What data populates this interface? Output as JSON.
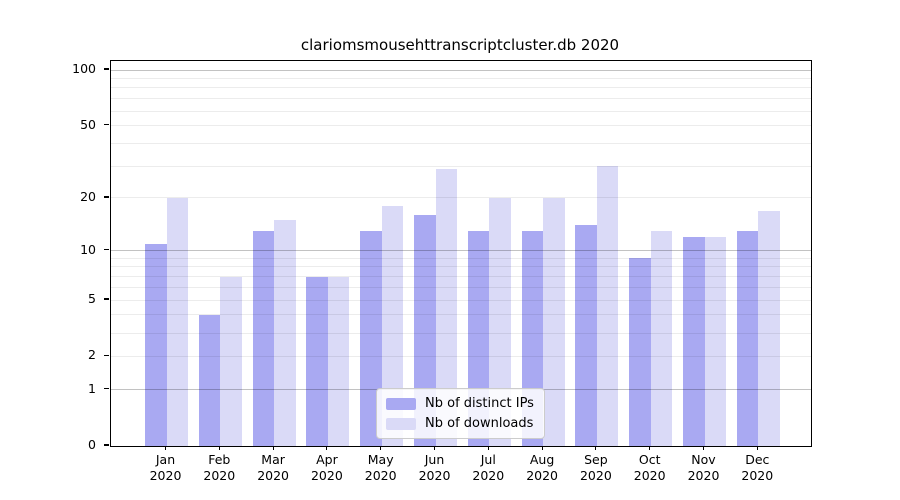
{
  "chart_data": {
    "type": "bar",
    "title": "clariomsmousehttranscriptcluster.db 2020",
    "categories": [
      "Jan",
      "Feb",
      "Mar",
      "Apr",
      "May",
      "Jun",
      "Jul",
      "Aug",
      "Sep",
      "Oct",
      "Nov",
      "Dec"
    ],
    "x_label_second_line": "2020",
    "series": [
      {
        "name": "Nb of distinct IPs",
        "color": "#a9a9f2",
        "values": [
          11,
          4,
          13,
          7,
          13,
          16,
          13,
          13,
          14,
          9,
          12,
          13
        ]
      },
      {
        "name": "Nb of downloads",
        "color": "#dadaf7",
        "values": [
          20,
          7,
          15,
          7,
          18,
          29,
          20,
          20,
          30,
          13,
          12,
          17
        ]
      }
    ],
    "y_scale": "log10(1+v)",
    "y_axis_ticks": [
      0,
      1,
      2,
      5,
      10,
      20,
      50,
      100
    ],
    "y_major_gridlines": [
      1,
      10,
      100
    ],
    "y_minor_gridlines": [
      2,
      3,
      4,
      5,
      6,
      7,
      8,
      9,
      20,
      30,
      40,
      50,
      60,
      70,
      80,
      90
    ],
    "ylim": [
      0,
      120
    ],
    "grid": true,
    "legend_position": "bottom-center"
  }
}
